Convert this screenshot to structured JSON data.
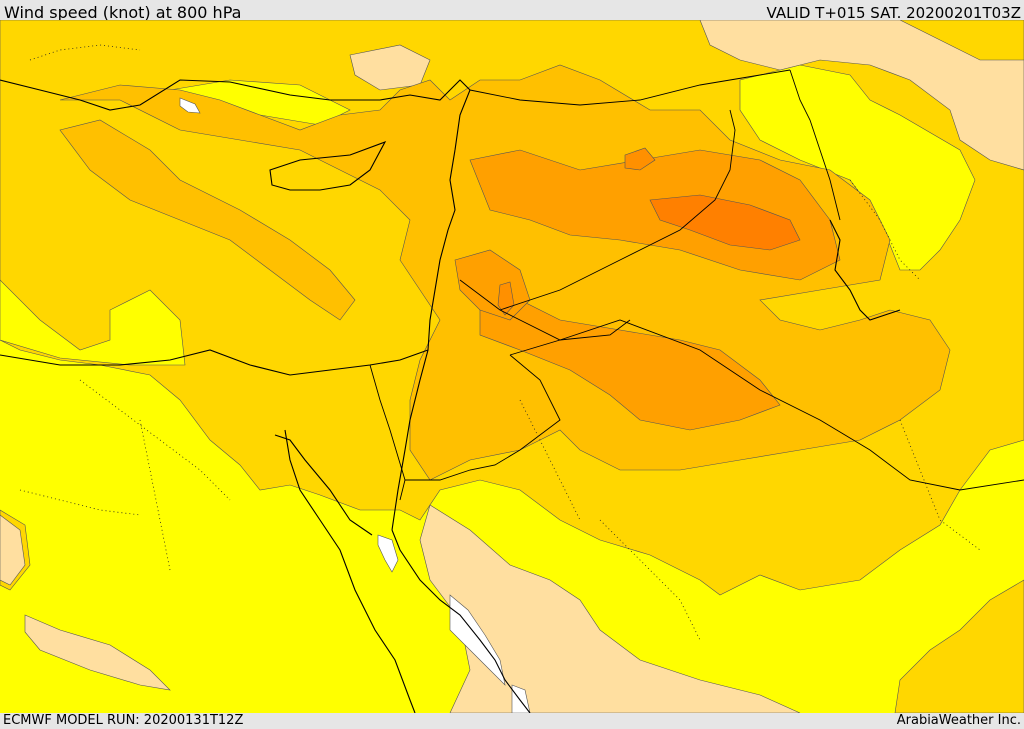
{
  "header": {
    "title": "Wind speed (knot) at 800 hPa",
    "valid": "VALID T+015 SAT. 20200201T03Z"
  },
  "footer": {
    "model_run": "ECMWF MODEL RUN: 20200131T12Z",
    "credit": "ArabiaWeather Inc."
  },
  "legend_colors": {
    "lightest": "#ffffff",
    "light": "#ffdfa0",
    "yellow": "#ffff00",
    "gold": "#ffd700",
    "amber": "#ffc000",
    "orange": "#ffa000",
    "dark_orange": "#ff8000"
  },
  "icons": {
    "borders": "country-border-lines",
    "coast": "coastline-lines"
  }
}
